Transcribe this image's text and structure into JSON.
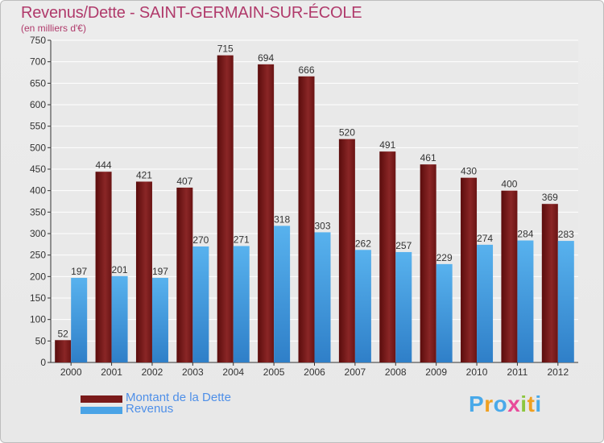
{
  "header": {
    "title": "Revenus/Dette - SAINT-GERMAIN-SUR-ÉCOLE",
    "subtitle": "(en milliers d'€)"
  },
  "logo": {
    "text": "Proxiti"
  },
  "chart_data": {
    "type": "bar",
    "title": "Revenus/Dette - SAINT-GERMAIN-SUR-ÉCOLE",
    "subtitle": "(en milliers d'€)",
    "categories": [
      "2000",
      "2001",
      "2002",
      "2003",
      "2004",
      "2005",
      "2006",
      "2007",
      "2008",
      "2009",
      "2010",
      "2011",
      "2012"
    ],
    "series": [
      {
        "name": "Montant de la Dette",
        "color": "#7a1a1a",
        "values": [
          52,
          444,
          421,
          407,
          715,
          694,
          666,
          520,
          491,
          461,
          430,
          400,
          369
        ]
      },
      {
        "name": "Revenus",
        "color": "#4aa3e6",
        "values": [
          197,
          201,
          197,
          270,
          271,
          318,
          303,
          262,
          257,
          229,
          274,
          284,
          283
        ]
      }
    ],
    "ylim": [
      0,
      750
    ],
    "yticks": [
      0,
      50,
      100,
      150,
      200,
      250,
      300,
      350,
      400,
      450,
      500,
      550,
      600,
      650,
      700,
      750
    ],
    "grid": true,
    "legend": "bottom-left"
  }
}
